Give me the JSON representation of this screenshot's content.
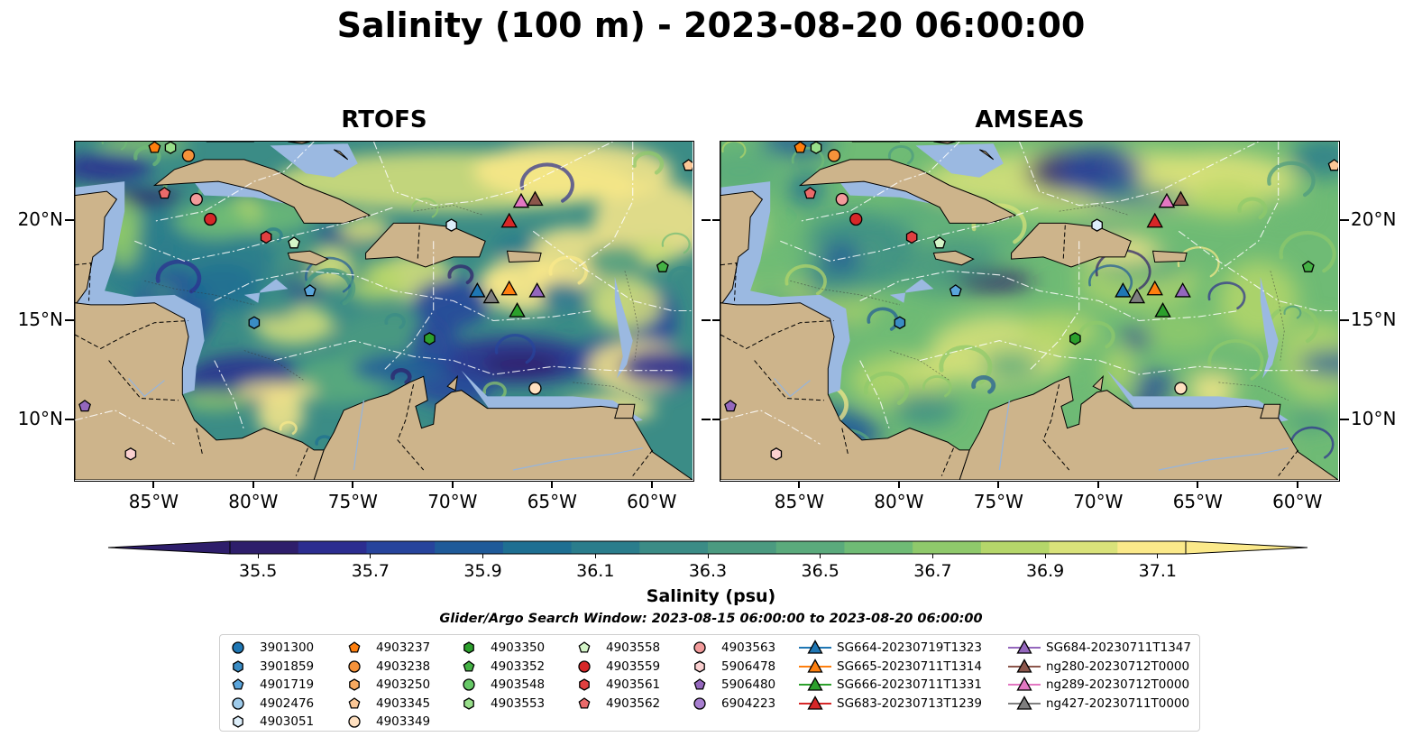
{
  "title": "Salinity (100 m) - 2023-08-20 06:00:00",
  "panels": [
    {
      "title": "RTOFS",
      "model": "rtofs"
    },
    {
      "title": "AMSEAS",
      "model": "amseas"
    }
  ],
  "axes": {
    "lon_labels": [
      "85°W",
      "80°W",
      "75°W",
      "70°W",
      "65°W",
      "60°W"
    ],
    "lon_values": [
      -85,
      -80,
      -75,
      -70,
      -65,
      -60
    ],
    "lat_labels": [
      "20°N",
      "15°N",
      "10°N"
    ],
    "lat_values": [
      20,
      15,
      10
    ],
    "lon_range": [
      -89,
      -58
    ],
    "lat_range": [
      7,
      24
    ]
  },
  "colorbar": {
    "title": "Salinity (psu)",
    "min": 35.5,
    "max": 37.1,
    "tick_labels": [
      "35.5",
      "35.7",
      "35.9",
      "36.1",
      "36.3",
      "36.5",
      "36.7",
      "36.9",
      "37.1"
    ],
    "colors": [
      "#2e1e6b",
      "#2c2d90",
      "#27449c",
      "#1f5a99",
      "#1e6f92",
      "#2a7d8c",
      "#3b8c86",
      "#4b9a80",
      "#5aaa7c",
      "#6fbb75",
      "#8fc96b",
      "#b5d66a",
      "#d9e27a",
      "#fbe98a"
    ]
  },
  "search_window": "Glider/Argo Search Window: 2023-08-15 06:00:00 to 2023-08-20 06:00:00",
  "legend": [
    {
      "label": "3901300",
      "marker": "circle",
      "color": "#1f77b4"
    },
    {
      "label": "3901859",
      "marker": "hexagon",
      "color": "#3a8cc4"
    },
    {
      "label": "4901719",
      "marker": "pentagon",
      "color": "#5aa5dc"
    },
    {
      "label": "4902476",
      "marker": "circle",
      "color": "#9ecbeb"
    },
    {
      "label": "4903051",
      "marker": "hexagon",
      "color": "#ddeefa"
    },
    {
      "label": "4903237",
      "marker": "pentagon",
      "color": "#ff7f0e"
    },
    {
      "label": "4903238",
      "marker": "circle",
      "color": "#f5923a"
    },
    {
      "label": "4903250",
      "marker": "hexagon",
      "color": "#f7a960"
    },
    {
      "label": "4903345",
      "marker": "pentagon",
      "color": "#fbc796"
    },
    {
      "label": "4903349",
      "marker": "circle",
      "color": "#ffe0c0"
    },
    {
      "label": "4903350",
      "marker": "hexagon",
      "color": "#2ca02c"
    },
    {
      "label": "4903352",
      "marker": "pentagon",
      "color": "#44b244"
    },
    {
      "label": "4903548",
      "marker": "circle",
      "color": "#66c866"
    },
    {
      "label": "4903553",
      "marker": "hexagon",
      "color": "#98df8a"
    },
    {
      "label": "4903558",
      "marker": "pentagon",
      "color": "#d4f5c8"
    },
    {
      "label": "4903559",
      "marker": "circle",
      "color": "#d62728"
    },
    {
      "label": "4903561",
      "marker": "hexagon",
      "color": "#e04040"
    },
    {
      "label": "4903562",
      "marker": "pentagon",
      "color": "#ea6a6a"
    },
    {
      "label": "4903563",
      "marker": "circle",
      "color": "#f29b9b"
    },
    {
      "label": "5906478",
      "marker": "hexagon",
      "color": "#fad0d0"
    },
    {
      "label": "5906480",
      "marker": "pentagon",
      "color": "#9467bd"
    },
    {
      "label": "6904223",
      "marker": "circle",
      "color": "#a87fd0"
    },
    {
      "label": "SG664-20230719T1323",
      "marker": "triangle-line",
      "color": "#1f77b4"
    },
    {
      "label": "SG665-20230711T1314",
      "marker": "triangle-line",
      "color": "#ff7f0e"
    },
    {
      "label": "SG666-20230711T1331",
      "marker": "triangle-line",
      "color": "#2ca02c"
    },
    {
      "label": "SG683-20230713T1239",
      "marker": "triangle-line",
      "color": "#d62728"
    },
    {
      "label": "SG684-20230711T1347",
      "marker": "triangle-line",
      "color": "#9467bd"
    },
    {
      "label": "ng280-20230712T0000",
      "marker": "triangle-line",
      "color": "#8c564b"
    },
    {
      "label": "ng289-20230712T0000",
      "marker": "triangle-line",
      "color": "#e377c2"
    },
    {
      "label": "ng427-20230711T0000",
      "marker": "triangle-line",
      "color": "#7f7f7f"
    }
  ],
  "platform_positions": [
    {
      "id": "4903237",
      "lon": -85.0,
      "lat": 23.7
    },
    {
      "id": "4903553",
      "lon": -84.2,
      "lat": 23.7
    },
    {
      "id": "4903238",
      "lon": -83.3,
      "lat": 23.3
    },
    {
      "id": "4903562",
      "lon": -84.5,
      "lat": 21.4
    },
    {
      "id": "4903563",
      "lon": -82.9,
      "lat": 21.1
    },
    {
      "id": "4903559",
      "lon": -82.2,
      "lat": 20.1
    },
    {
      "id": "4903561",
      "lon": -79.4,
      "lat": 19.2
    },
    {
      "id": "4903558",
      "lon": -78.0,
      "lat": 18.9
    },
    {
      "id": "4901719",
      "lon": -77.2,
      "lat": 16.5
    },
    {
      "id": "3901859",
      "lon": -80.0,
      "lat": 14.9
    },
    {
      "id": "4903051",
      "lon": -70.1,
      "lat": 19.8
    },
    {
      "id": "4903350",
      "lon": -71.2,
      "lat": 14.1
    },
    {
      "id": "4903352",
      "lon": -59.5,
      "lat": 17.7
    },
    {
      "id": "4903349",
      "lon": -65.9,
      "lat": 11.6
    },
    {
      "id": "5906480",
      "lon": -88.5,
      "lat": 10.7
    },
    {
      "id": "5906478",
      "lon": -86.2,
      "lat": 8.3
    },
    {
      "id": "4903345",
      "lon": -58.2,
      "lat": 22.8
    },
    {
      "id": "SG683-20230713T1239",
      "lon": -67.2,
      "lat": 20.0
    },
    {
      "id": "ng289-20230712T0000",
      "lon": -66.6,
      "lat": 21.0
    },
    {
      "id": "ng280-20230712T0000",
      "lon": -65.9,
      "lat": 21.1
    },
    {
      "id": "SG664-20230719T1323",
      "lon": -68.8,
      "lat": 16.5
    },
    {
      "id": "ng427-20230711T0000",
      "lon": -68.1,
      "lat": 16.2
    },
    {
      "id": "SG665-20230711T1314",
      "lon": -67.2,
      "lat": 16.6
    },
    {
      "id": "SG684-20230711T1347",
      "lon": -65.8,
      "lat": 16.5
    },
    {
      "id": "SG666-20230711T1331",
      "lon": -66.8,
      "lat": 15.5
    }
  ]
}
